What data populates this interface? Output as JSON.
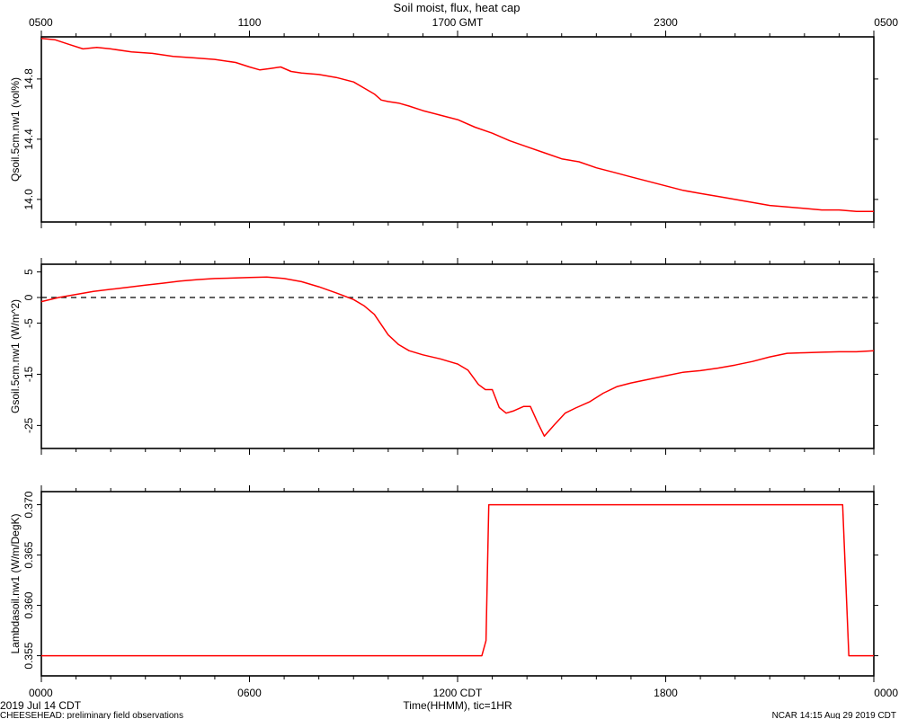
{
  "header": {
    "title": "Soil moist, flux, heat cap",
    "top_ticks": [
      "0500",
      "1100",
      "1700 GMT",
      "2300",
      "0500"
    ]
  },
  "footer": {
    "date": "2019 Jul 14 CDT",
    "project": "CHEESEHEAD: preliminary field observations",
    "xlabel": "Time(HHMM), tic=1HR",
    "stamp": "NCAR 14:15 Aug 29 2019 CDT",
    "bottom_ticks": [
      "0000",
      "0600",
      "1200 CDT",
      "1800",
      "0000"
    ]
  },
  "style": {
    "line_color": "#ff0000",
    "axis_color": "#000000"
  },
  "chart_data": [
    {
      "type": "line",
      "ylabel": "Qsoil.5cm.nw1 (vol%)",
      "yticks": [
        14.0,
        14.4,
        14.8
      ],
      "ytick_labels": [
        "14.0",
        "14.4",
        "14.8"
      ],
      "ylim": [
        13.85,
        15.08
      ],
      "xlim_hours_cdt": [
        0,
        24
      ],
      "grid": false,
      "x": [
        0,
        0.4,
        0.8,
        1.2,
        1.6,
        2.0,
        2.6,
        3.2,
        3.8,
        4.4,
        5.0,
        5.6,
        6.0,
        6.3,
        6.6,
        6.9,
        7.2,
        7.5,
        8.0,
        8.5,
        9.0,
        9.3,
        9.6,
        9.8,
        10.0,
        10.3,
        10.6,
        11.0,
        11.5,
        12.0,
        12.5,
        13.0,
        13.5,
        14.0,
        14.5,
        15.0,
        15.5,
        16.0,
        16.5,
        17.0,
        17.5,
        18.0,
        18.5,
        19.0,
        19.5,
        20.0,
        20.5,
        21.0,
        21.5,
        22.0,
        22.5,
        23.0,
        23.5,
        24.0
      ],
      "series": [
        {
          "values": [
            15.07,
            15.06,
            15.03,
            15.0,
            15.01,
            15.0,
            14.98,
            14.97,
            14.95,
            14.94,
            14.93,
            14.91,
            14.88,
            14.86,
            14.87,
            14.88,
            14.85,
            14.84,
            14.83,
            14.81,
            14.78,
            14.74,
            14.7,
            14.66,
            14.65,
            14.64,
            14.62,
            14.59,
            14.56,
            14.53,
            14.48,
            14.44,
            14.39,
            14.35,
            14.31,
            14.27,
            14.25,
            14.21,
            14.18,
            14.15,
            14.12,
            14.09,
            14.06,
            14.04,
            14.02,
            14.0,
            13.98,
            13.96,
            13.95,
            13.94,
            13.93,
            13.93,
            13.92,
            13.92
          ]
        }
      ]
    },
    {
      "type": "line",
      "ylabel": "Gsoil.5cm.nw1 (W/m^2)",
      "yticks": [
        5,
        0,
        -5,
        -15,
        -25
      ],
      "ytick_labels": [
        "5",
        "0",
        "-5",
        "-15",
        "-25"
      ],
      "ylim": [
        -29.5,
        6.5
      ],
      "xlim_hours_cdt": [
        0,
        24
      ],
      "reference_line": 0,
      "grid": false,
      "x": [
        0,
        0.5,
        1.0,
        1.5,
        2.0,
        2.5,
        3.0,
        3.5,
        4.0,
        4.5,
        5.0,
        5.5,
        6.0,
        6.5,
        7.0,
        7.5,
        8.0,
        8.5,
        9.0,
        9.3,
        9.6,
        9.8,
        10.0,
        10.3,
        10.6,
        11.0,
        11.5,
        12.0,
        12.3,
        12.6,
        12.8,
        13.0,
        13.2,
        13.4,
        13.6,
        13.9,
        14.1,
        14.3,
        14.5,
        14.8,
        15.1,
        15.4,
        15.8,
        16.2,
        16.6,
        17.0,
        17.5,
        18.0,
        18.5,
        19.0,
        19.5,
        20.0,
        20.5,
        21.0,
        21.5,
        22.0,
        22.5,
        23.0,
        23.5,
        24.0
      ],
      "series": [
        {
          "values": [
            -0.8,
            0.0,
            0.6,
            1.2,
            1.6,
            2.0,
            2.4,
            2.8,
            3.2,
            3.5,
            3.7,
            3.8,
            3.9,
            4.0,
            3.7,
            3.1,
            2.1,
            0.9,
            -0.4,
            -1.6,
            -3.3,
            -5.3,
            -7.3,
            -9.2,
            -10.4,
            -11.2,
            -12.0,
            -13.0,
            -14.2,
            -17.0,
            -18.0,
            -18.0,
            -21.5,
            -22.6,
            -22.2,
            -21.3,
            -21.3,
            -24.3,
            -27.1,
            -24.8,
            -22.6,
            -21.6,
            -20.4,
            -18.7,
            -17.4,
            -16.7,
            -16.0,
            -15.3,
            -14.6,
            -14.3,
            -13.8,
            -13.2,
            -12.5,
            -11.6,
            -10.9,
            -10.8,
            -10.7,
            -10.6,
            -10.6,
            -10.4
          ]
        }
      ]
    },
    {
      "type": "line",
      "ylabel": "Lambdasoil.nw1 (W/m/DegK)",
      "yticks": [
        0.355,
        0.36,
        0.365,
        0.37
      ],
      "ytick_labels": [
        "0.355",
        "0.360",
        "0.365",
        "0.370"
      ],
      "ylim": [
        0.353,
        0.3713
      ],
      "xlim_hours_cdt": [
        0,
        24
      ],
      "grid": false,
      "x": [
        0,
        12.7,
        12.82,
        12.9,
        23.1,
        23.28,
        24.0
      ],
      "series": [
        {
          "values": [
            0.355,
            0.355,
            0.3565,
            0.37,
            0.37,
            0.355,
            0.355
          ]
        }
      ]
    }
  ]
}
